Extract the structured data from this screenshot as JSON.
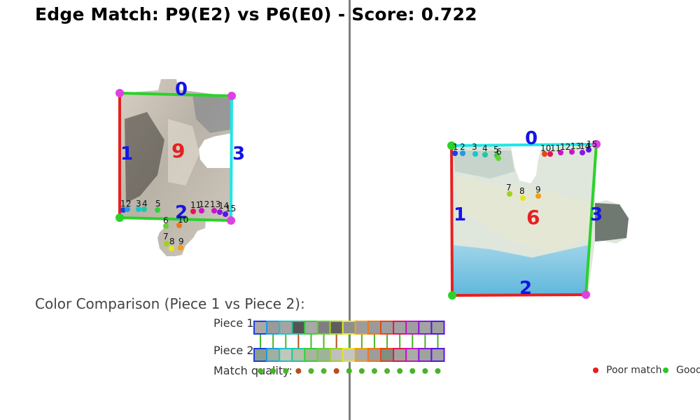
{
  "title": "Edge Match: P9(E2) vs P6(E0) - Score: 0.722",
  "left_piece": {
    "id_label": "9",
    "edge_labels": [
      "0",
      "1",
      "2",
      "3"
    ],
    "point_labels": [
      "1",
      "2",
      "3",
      "4",
      "5",
      "6",
      "7",
      "8",
      "9",
      "10",
      "11",
      "12",
      "13",
      "14",
      "15"
    ]
  },
  "right_piece": {
    "id_label": "6",
    "edge_labels": [
      "0",
      "1",
      "2",
      "3"
    ],
    "point_labels": [
      "1",
      "2",
      "3",
      "4",
      "5",
      "6",
      "7",
      "8",
      "9",
      "10",
      "11",
      "12",
      "13",
      "14",
      "15"
    ]
  },
  "comparison": {
    "title": "Color Comparison (Piece 1 vs Piece 2):",
    "piece1_label": "Piece 1:",
    "piece2_label": "Piece 2:",
    "match_label": "Match quality:",
    "piece1_colors": [
      "#a9a9a9",
      "#9a9a9a",
      "#a4a4a4",
      "#555555",
      "#a8a8a8",
      "#7f7f7f",
      "#5e5e5e",
      "#8f8f8f",
      "#9c9c9c",
      "#9a9a9a",
      "#9f9f9f",
      "#a1a1a1",
      "#9e9e9e",
      "#a3a3a3",
      "#a0a0a0"
    ],
    "piece2_colors": [
      "#8a9e8c",
      "#9fb09f",
      "#c0c8b8",
      "#b4c0a8",
      "#a9b49f",
      "#9fb39a",
      "#bfbfbf",
      "#c5c5c5",
      "#a9a9a9",
      "#9c9c9c",
      "#7f8f80",
      "#9fa39c",
      "#a8ada3",
      "#9ea49b",
      "#a3a3a3"
    ],
    "slot_colors": [
      "#1f3de6",
      "#1e9be6",
      "#14c8c8",
      "#1fc8a0",
      "#32d232",
      "#64d232",
      "#a0d21e",
      "#e6e61e",
      "#f0a014",
      "#f07814",
      "#e64614",
      "#e6145a",
      "#c814c8",
      "#8c14e6",
      "#5a14e6"
    ],
    "match_colors": [
      "#46b428",
      "#46b428",
      "#50b42d",
      "#b4501e",
      "#50b42d",
      "#50b42d",
      "#b4501e",
      "#46b428",
      "#46b428",
      "#50b42d",
      "#50b42d",
      "#46b428",
      "#46b428",
      "#46b428",
      "#46b428"
    ],
    "legend_poor": "Poor match",
    "legend_good": "Good",
    "legend_poor_color": "#e61e1e",
    "legend_good_color": "#28c828"
  },
  "colors": {
    "corner": "#e040e0",
    "edge0_left": "#2ad22a",
    "edge1_left": "#e62020",
    "edge2_left": "#2ad22a",
    "edge3_left": "#1ee6e6",
    "edge0_right": "#1ee6e6",
    "edge1_right": "#e62020",
    "edge2_right": "#e62020",
    "edge3_right": "#2ad22a",
    "edge_label": "#1414e6",
    "piece_label": "#e62020"
  }
}
